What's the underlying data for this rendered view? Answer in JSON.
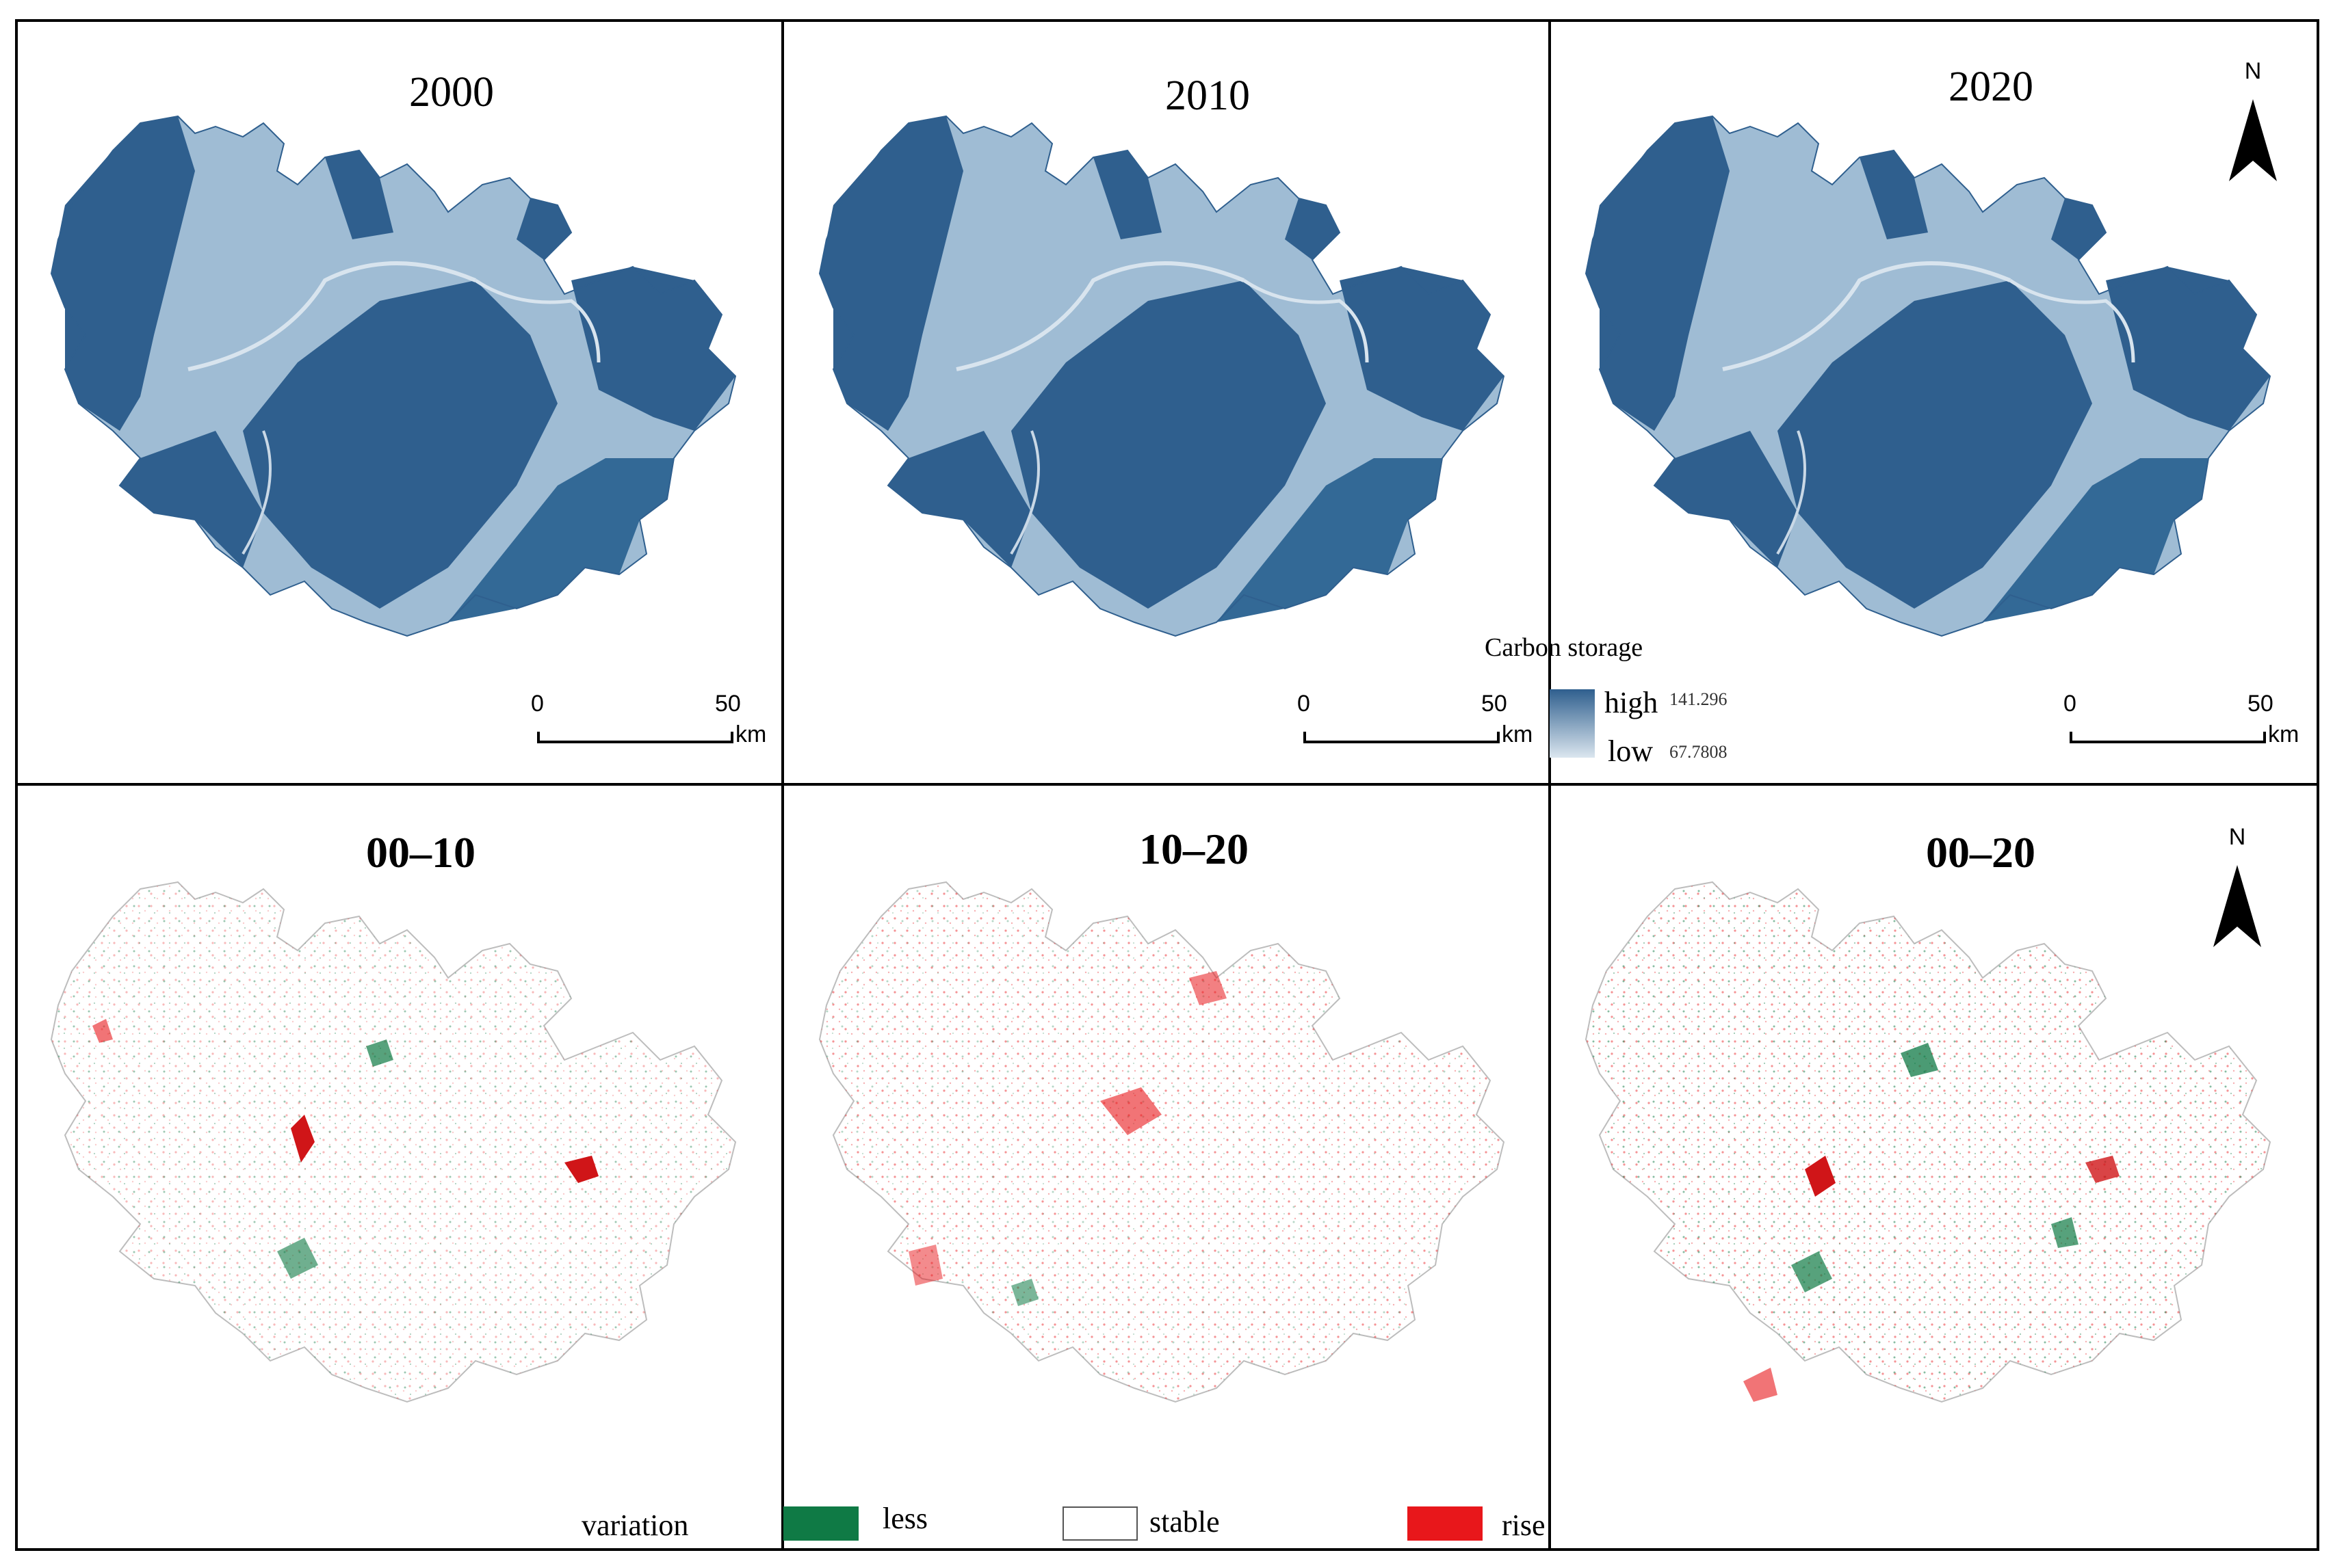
{
  "top_panels": [
    {
      "title": "2000"
    },
    {
      "title": "2010"
    },
    {
      "title": "2020"
    }
  ],
  "bottom_panels": [
    {
      "title": "00–10"
    },
    {
      "title": "10–20"
    },
    {
      "title": "00–20"
    }
  ],
  "north_label": "N",
  "scale": {
    "zero": "0",
    "fifty": "50",
    "unit": "km"
  },
  "carbon_legend": {
    "title": "Carbon storage",
    "high_label": "high",
    "high_value": "141.296",
    "low_label": "low",
    "low_value": "67.7808",
    "high_color": "#2f5f8e",
    "low_color": "#dbe6ef"
  },
  "variation_legend": {
    "title": "variation",
    "items": [
      {
        "label": "less",
        "color": "#0f7a45"
      },
      {
        "label": "stable",
        "color": "#ffffff"
      },
      {
        "label": "rise",
        "color": "#e8171b"
      }
    ]
  },
  "icons": [
    "north-arrow-icon"
  ]
}
